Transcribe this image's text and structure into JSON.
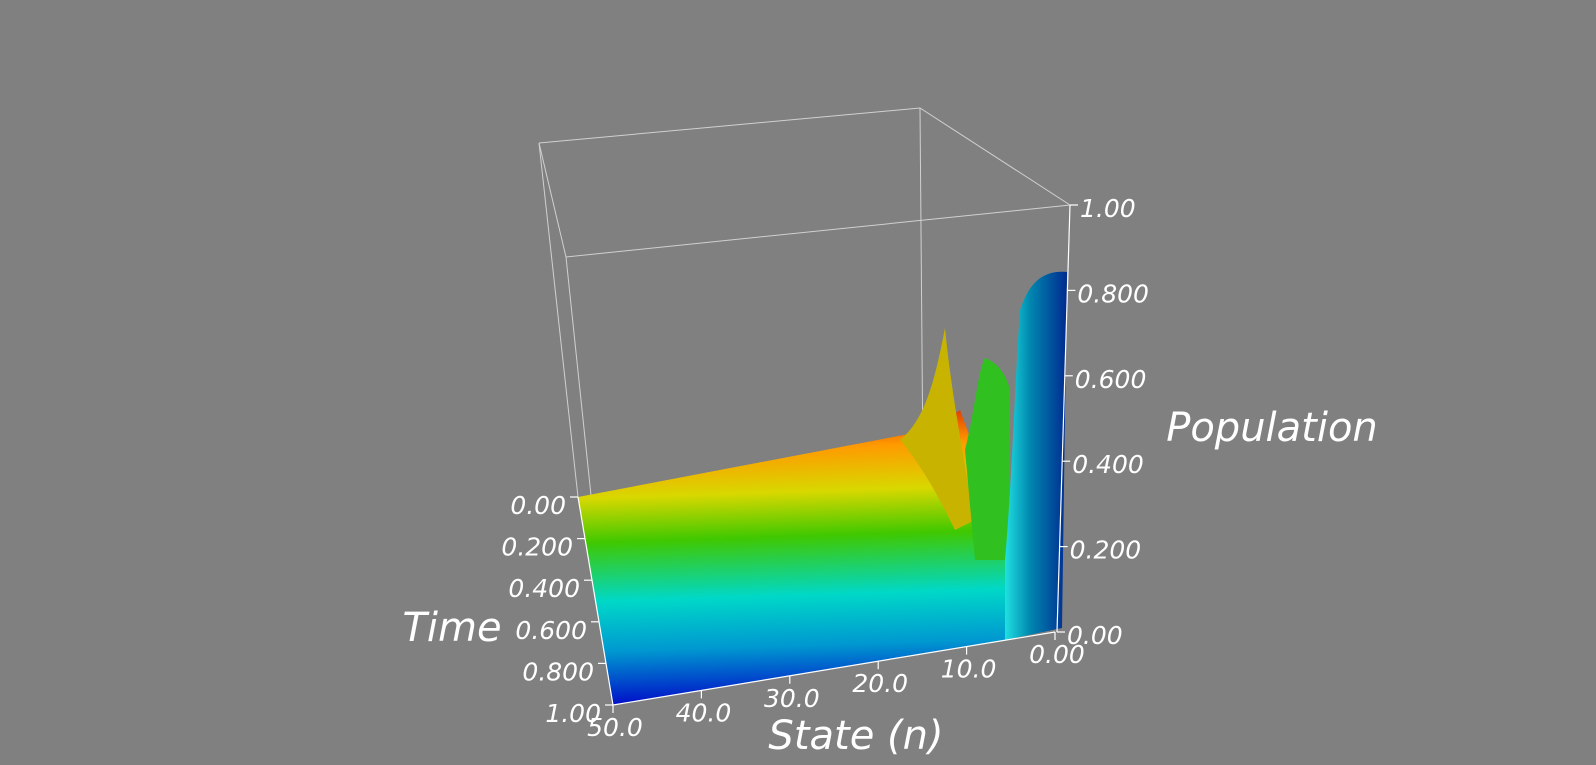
{
  "chart_data": {
    "type": "surface3d",
    "xlabel": "State (n)",
    "ylabel": "Time",
    "zlabel": "Population",
    "xlim": [
      50,
      0
    ],
    "xticks": [
      {
        "value": 50,
        "label": "50.0"
      },
      {
        "value": 40,
        "label": "40.0"
      },
      {
        "value": 30,
        "label": "30.0"
      },
      {
        "value": 20,
        "label": "20.0"
      },
      {
        "value": 10,
        "label": "10.0"
      },
      {
        "value": 0,
        "label": "0.00"
      }
    ],
    "ylim": [
      0,
      1
    ],
    "yticks": [
      {
        "value": 0,
        "label": "0.00"
      },
      {
        "value": 0.2,
        "label": "0.200"
      },
      {
        "value": 0.4,
        "label": "0.400"
      },
      {
        "value": 0.6,
        "label": "0.600"
      },
      {
        "value": 0.8,
        "label": "0.800"
      },
      {
        "value": 1,
        "label": "1.00"
      }
    ],
    "zlim": [
      0,
      1
    ],
    "zticks": [
      {
        "value": 0,
        "label": "0.00"
      },
      {
        "value": 0.2,
        "label": "0.200"
      },
      {
        "value": 0.4,
        "label": "0.400"
      },
      {
        "value": 0.6,
        "label": "0.600"
      },
      {
        "value": 0.8,
        "label": "0.800"
      },
      {
        "value": 1,
        "label": "1.00"
      }
    ]
  }
}
